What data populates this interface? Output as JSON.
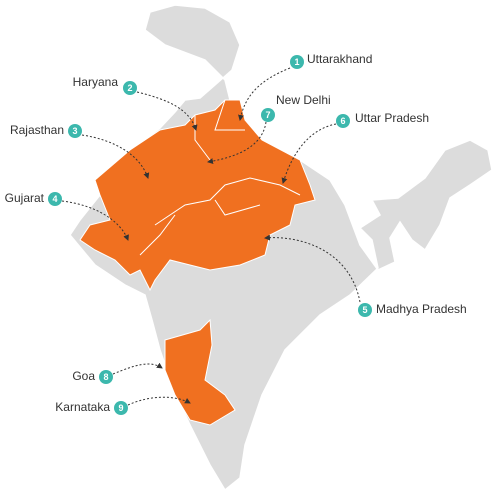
{
  "labels": [
    {
      "number": 1,
      "name": "Uttarakhand"
    },
    {
      "number": 2,
      "name": "Haryana"
    },
    {
      "number": 3,
      "name": "Rajasthan"
    },
    {
      "number": 4,
      "name": "Gujarat"
    },
    {
      "number": 5,
      "name": "Madhya Pradesh"
    },
    {
      "number": 6,
      "name": "Uttar Pradesh"
    },
    {
      "number": 7,
      "name": "New Delhi"
    },
    {
      "number": 8,
      "name": "Goa"
    },
    {
      "number": 9,
      "name": "Karnataka"
    }
  ]
}
